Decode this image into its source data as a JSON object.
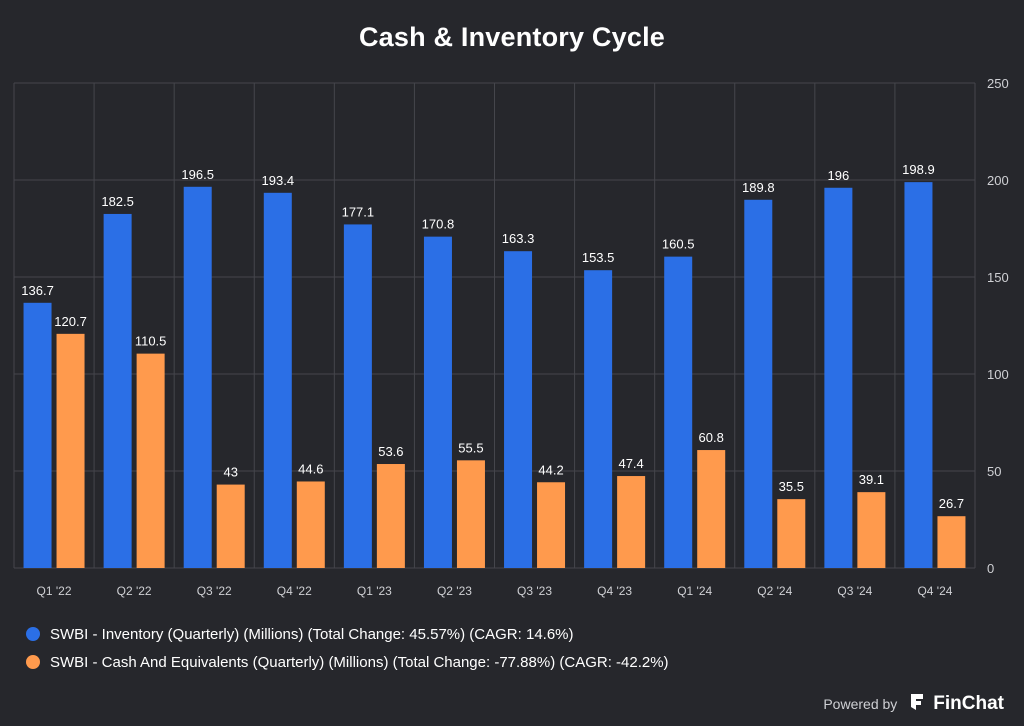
{
  "title": "Cash & Inventory Cycle",
  "legend": {
    "inventory": "SWBI - Inventory (Quarterly) (Millions) (Total Change: 45.57%) (CAGR: 14.6%)",
    "cash": "SWBI - Cash And Equivalents (Quarterly) (Millions) (Total Change: -77.88%) (CAGR: -42.2%)"
  },
  "footer": {
    "powered_by": "Powered by",
    "brand": "FinChat"
  },
  "colors": {
    "background": "#26272c",
    "inventory": "#2b6fe6",
    "cash": "#ff9a4d",
    "grid": "#45464c"
  },
  "chart_data": {
    "type": "bar",
    "title": "Cash & Inventory Cycle",
    "categories": [
      "Q1 '22",
      "Q2 '22",
      "Q3 '22",
      "Q4 '22",
      "Q1 '23",
      "Q2 '23",
      "Q3 '23",
      "Q4 '23",
      "Q1 '24",
      "Q2 '24",
      "Q3 '24",
      "Q4 '24"
    ],
    "series": [
      {
        "name": "SWBI - Inventory (Quarterly) (Millions)",
        "color": "#2b6fe6",
        "values": [
          136.7,
          182.5,
          196.5,
          193.4,
          177.1,
          170.8,
          163.3,
          153.5,
          160.5,
          189.8,
          196,
          198.9
        ]
      },
      {
        "name": "SWBI - Cash And Equivalents (Quarterly) (Millions)",
        "color": "#ff9a4d",
        "values": [
          120.7,
          110.5,
          43,
          44.6,
          53.6,
          55.5,
          44.2,
          47.4,
          60.8,
          35.5,
          39.1,
          26.7
        ]
      }
    ],
    "yticks": [
      0,
      50,
      100,
      150,
      200,
      250
    ],
    "ylim": [
      0,
      250
    ],
    "grid": true,
    "y_axis_side": "right",
    "legend_position": "bottom-left"
  }
}
